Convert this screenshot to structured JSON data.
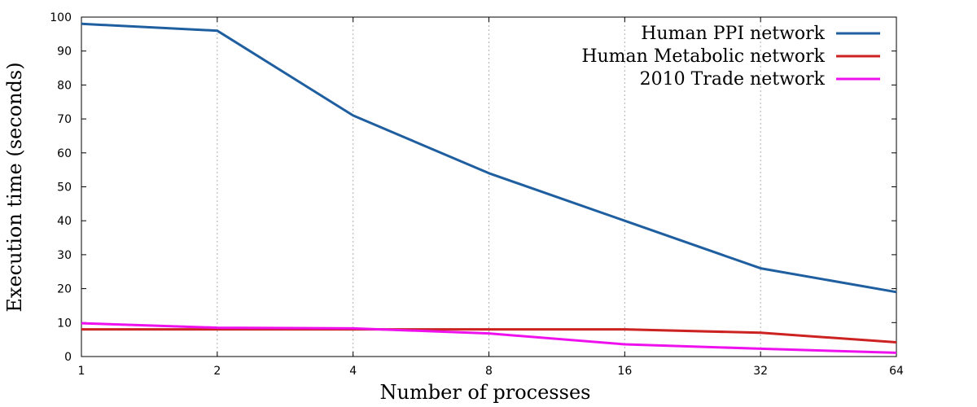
{
  "chart_data": {
    "type": "line",
    "xlabel": "Number of processes",
    "ylabel": "Execution time (seconds)",
    "x": [
      1,
      2,
      4,
      8,
      16,
      32,
      64
    ],
    "x_tick_labels": [
      "1",
      "2",
      "4",
      "8",
      "16",
      "32",
      "64"
    ],
    "x_scale": "log2",
    "y_ticks": [
      0,
      10,
      20,
      30,
      40,
      50,
      60,
      70,
      80,
      90,
      100
    ],
    "ylim": [
      0,
      100
    ],
    "grid": "vertical dashed",
    "legend_position": "top-right",
    "series": [
      {
        "name": "Human PPI network",
        "color": "#1f5fa0",
        "values": [
          98,
          96,
          71,
          54,
          40,
          26,
          19
        ]
      },
      {
        "name": "Human Metabolic network",
        "color": "#cc2222",
        "values": [
          8,
          8,
          8,
          8,
          8,
          7,
          4.2
        ]
      },
      {
        "name": "2010 Trade network",
        "color": "#ee11ee",
        "values": [
          9.8,
          8.5,
          8.3,
          6.8,
          3.6,
          2.3,
          1.1
        ]
      }
    ]
  }
}
